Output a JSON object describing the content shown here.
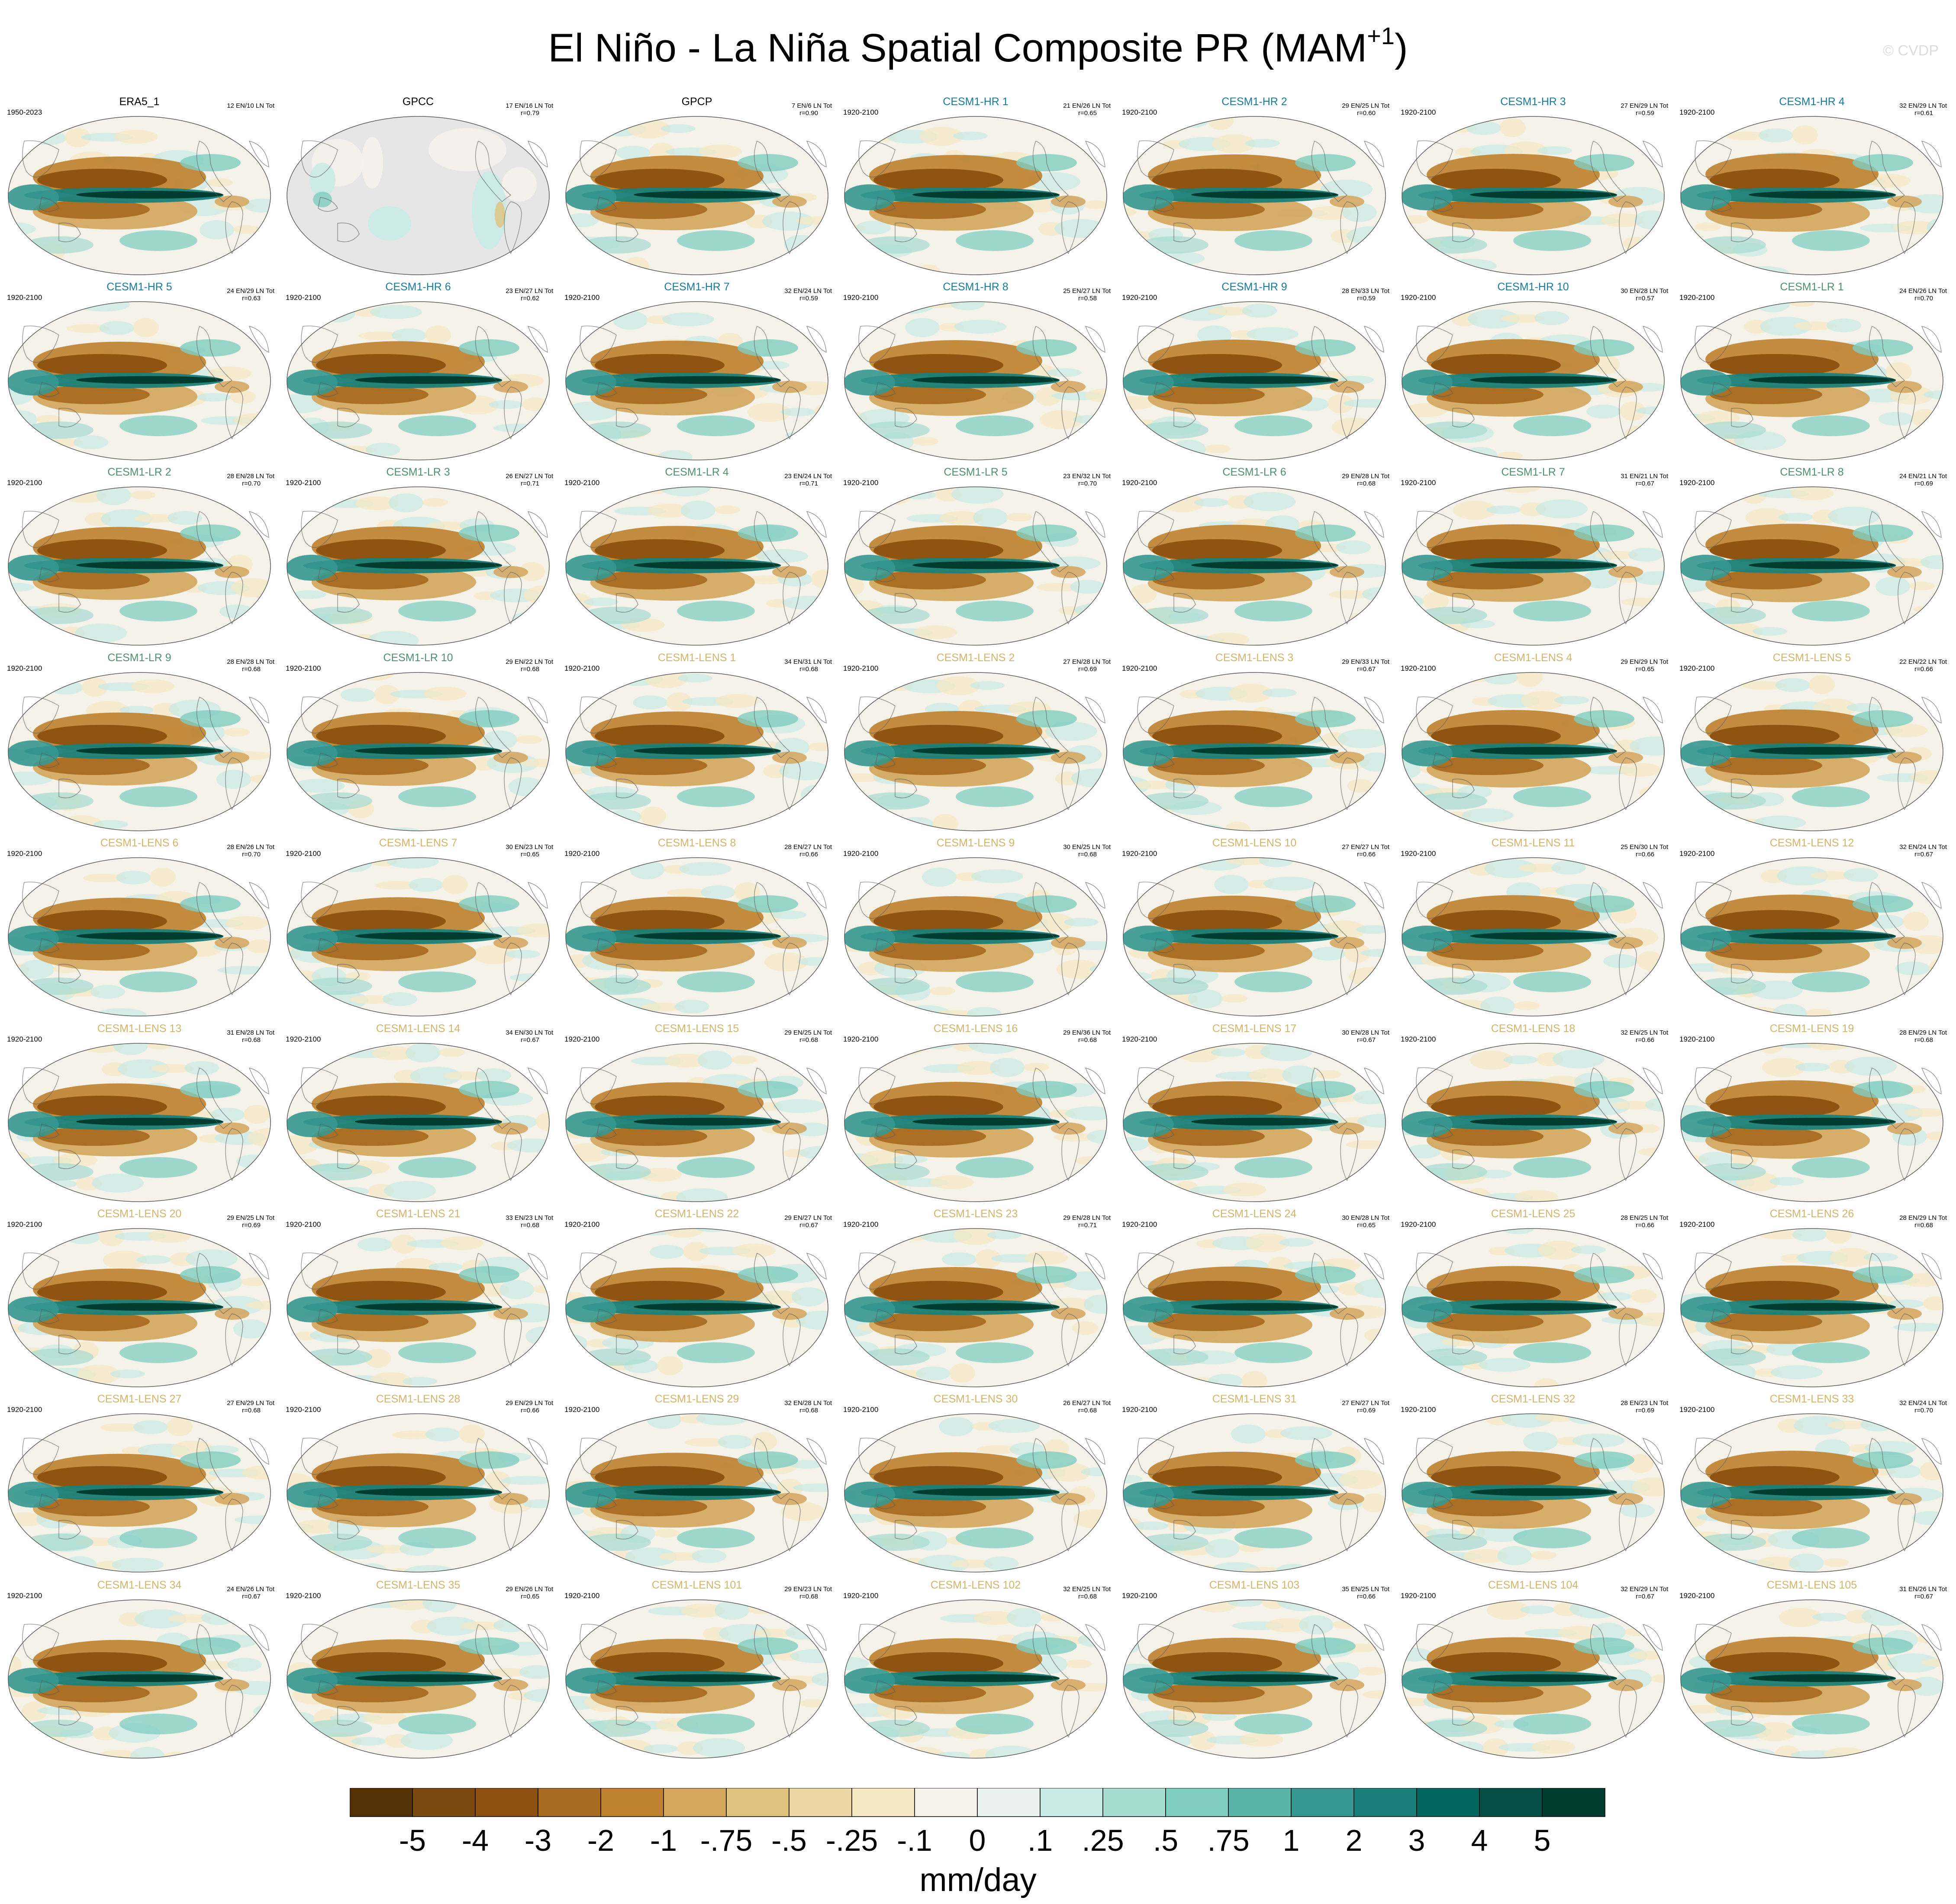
{
  "title": {
    "main": "El Niño - La Niña Spatial Composite PR (MAM",
    "superscript": "+1",
    "close": ")"
  },
  "watermark": "© CVDP",
  "colors": {
    "obs_title": "#000000",
    "hr_title": "#1a7a9c",
    "lr_title": "#4f8f6f",
    "lens_title": "#d2b46e",
    "land_gray": "#e6e6e6"
  },
  "panels": [
    {
      "name": "ERA5_1",
      "group": "obs",
      "years": "1950-2023",
      "counts": "12 EN/10 LN Tot",
      "r": ""
    },
    {
      "name": "GPCC",
      "group": "obs",
      "years": "",
      "counts": "17 EN/16 LN Tot",
      "r": "r=0.79",
      "style": "gpcc"
    },
    {
      "name": "GPCP",
      "group": "obs",
      "years": "",
      "counts": "7 EN/6 LN Tot",
      "r": "r=0.90"
    },
    {
      "name": "CESM1-HR 1",
      "group": "hr",
      "years": "1920-2100",
      "counts": "21 EN/26 LN Tot",
      "r": "r=0.65"
    },
    {
      "name": "CESM1-HR 2",
      "group": "hr",
      "years": "1920-2100",
      "counts": "29 EN/25 LN Tot",
      "r": "r=0.60"
    },
    {
      "name": "CESM1-HR 3",
      "group": "hr",
      "years": "1920-2100",
      "counts": "27 EN/29 LN Tot",
      "r": "r=0.59"
    },
    {
      "name": "CESM1-HR 4",
      "group": "hr",
      "years": "1920-2100",
      "counts": "32 EN/29 LN Tot",
      "r": "r=0.61"
    },
    {
      "name": "CESM1-HR 5",
      "group": "hr",
      "years": "1920-2100",
      "counts": "24 EN/29 LN Tot",
      "r": "r=0.63"
    },
    {
      "name": "CESM1-HR 6",
      "group": "hr",
      "years": "1920-2100",
      "counts": "23 EN/27 LN Tot",
      "r": "r=0.62"
    },
    {
      "name": "CESM1-HR 7",
      "group": "hr",
      "years": "1920-2100",
      "counts": "32 EN/24 LN Tot",
      "r": "r=0.59"
    },
    {
      "name": "CESM1-HR 8",
      "group": "hr",
      "years": "1920-2100",
      "counts": "25 EN/27 LN Tot",
      "r": "r=0.58"
    },
    {
      "name": "CESM1-HR 9",
      "group": "hr",
      "years": "1920-2100",
      "counts": "28 EN/33 LN Tot",
      "r": "r=0.59"
    },
    {
      "name": "CESM1-HR 10",
      "group": "hr",
      "years": "1920-2100",
      "counts": "30 EN/28 LN Tot",
      "r": "r=0.57"
    },
    {
      "name": "CESM1-LR 1",
      "group": "lr",
      "years": "1920-2100",
      "counts": "24 EN/26 LN Tot",
      "r": "r=0.70"
    },
    {
      "name": "CESM1-LR 2",
      "group": "lr",
      "years": "1920-2100",
      "counts": "28 EN/28 LN Tot",
      "r": "r=0.70"
    },
    {
      "name": "CESM1-LR 3",
      "group": "lr",
      "years": "1920-2100",
      "counts": "26 EN/27 LN Tot",
      "r": "r=0.71"
    },
    {
      "name": "CESM1-LR 4",
      "group": "lr",
      "years": "1920-2100",
      "counts": "23 EN/24 LN Tot",
      "r": "r=0.71"
    },
    {
      "name": "CESM1-LR 5",
      "group": "lr",
      "years": "1920-2100",
      "counts": "23 EN/32 LN Tot",
      "r": "r=0.70"
    },
    {
      "name": "CESM1-LR 6",
      "group": "lr",
      "years": "1920-2100",
      "counts": "29 EN/28 LN Tot",
      "r": "r=0.68"
    },
    {
      "name": "CESM1-LR 7",
      "group": "lr",
      "years": "1920-2100",
      "counts": "31 EN/21 LN Tot",
      "r": "r=0.67"
    },
    {
      "name": "CESM1-LR 8",
      "group": "lr",
      "years": "1920-2100",
      "counts": "24 EN/21 LN Tot",
      "r": "r=0.69"
    },
    {
      "name": "CESM1-LR 9",
      "group": "lr",
      "years": "1920-2100",
      "counts": "28 EN/28 LN Tot",
      "r": "r=0.68"
    },
    {
      "name": "CESM1-LR 10",
      "group": "lr",
      "years": "1920-2100",
      "counts": "29 EN/22 LN Tot",
      "r": "r=0.68"
    },
    {
      "name": "CESM1-LENS 1",
      "group": "lens",
      "years": "1920-2100",
      "counts": "34 EN/31 LN Tot",
      "r": "r=0.68"
    },
    {
      "name": "CESM1-LENS 2",
      "group": "lens",
      "years": "1920-2100",
      "counts": "27 EN/28 LN Tot",
      "r": "r=0.69"
    },
    {
      "name": "CESM1-LENS 3",
      "group": "lens",
      "years": "1920-2100",
      "counts": "29 EN/33 LN Tot",
      "r": "r=0.67"
    },
    {
      "name": "CESM1-LENS 4",
      "group": "lens",
      "years": "1920-2100",
      "counts": "29 EN/29 LN Tot",
      "r": "r=0.65"
    },
    {
      "name": "CESM1-LENS 5",
      "group": "lens",
      "years": "1920-2100",
      "counts": "22 EN/22 LN Tot",
      "r": "r=0.66"
    },
    {
      "name": "CESM1-LENS 6",
      "group": "lens",
      "years": "1920-2100",
      "counts": "28 EN/26 LN Tot",
      "r": "r=0.70"
    },
    {
      "name": "CESM1-LENS 7",
      "group": "lens",
      "years": "1920-2100",
      "counts": "30 EN/23 LN Tot",
      "r": "r=0.65"
    },
    {
      "name": "CESM1-LENS 8",
      "group": "lens",
      "years": "1920-2100",
      "counts": "28 EN/27 LN Tot",
      "r": "r=0.66"
    },
    {
      "name": "CESM1-LENS 9",
      "group": "lens",
      "years": "1920-2100",
      "counts": "30 EN/25 LN Tot",
      "r": "r=0.68"
    },
    {
      "name": "CESM1-LENS 10",
      "group": "lens",
      "years": "1920-2100",
      "counts": "27 EN/27 LN Tot",
      "r": "r=0.66"
    },
    {
      "name": "CESM1-LENS 11",
      "group": "lens",
      "years": "1920-2100",
      "counts": "25 EN/30 LN Tot",
      "r": "r=0.66"
    },
    {
      "name": "CESM1-LENS 12",
      "group": "lens",
      "years": "1920-2100",
      "counts": "32 EN/24 LN Tot",
      "r": "r=0.67"
    },
    {
      "name": "CESM1-LENS 13",
      "group": "lens",
      "years": "1920-2100",
      "counts": "31 EN/28 LN Tot",
      "r": "r=0.68"
    },
    {
      "name": "CESM1-LENS 14",
      "group": "lens",
      "years": "1920-2100",
      "counts": "34 EN/30 LN Tot",
      "r": "r=0.67"
    },
    {
      "name": "CESM1-LENS 15",
      "group": "lens",
      "years": "1920-2100",
      "counts": "29 EN/25 LN Tot",
      "r": "r=0.68"
    },
    {
      "name": "CESM1-LENS 16",
      "group": "lens",
      "years": "1920-2100",
      "counts": "29 EN/36 LN Tot",
      "r": "r=0.68"
    },
    {
      "name": "CESM1-LENS 17",
      "group": "lens",
      "years": "1920-2100",
      "counts": "30 EN/28 LN Tot",
      "r": "r=0.67"
    },
    {
      "name": "CESM1-LENS 18",
      "group": "lens",
      "years": "1920-2100",
      "counts": "32 EN/25 LN Tot",
      "r": "r=0.66"
    },
    {
      "name": "CESM1-LENS 19",
      "group": "lens",
      "years": "1920-2100",
      "counts": "28 EN/29 LN Tot",
      "r": "r=0.68"
    },
    {
      "name": "CESM1-LENS 20",
      "group": "lens",
      "years": "1920-2100",
      "counts": "29 EN/25 LN Tot",
      "r": "r=0.69"
    },
    {
      "name": "CESM1-LENS 21",
      "group": "lens",
      "years": "1920-2100",
      "counts": "33 EN/23 LN Tot",
      "r": "r=0.68"
    },
    {
      "name": "CESM1-LENS 22",
      "group": "lens",
      "years": "1920-2100",
      "counts": "29 EN/27 LN Tot",
      "r": "r=0.67"
    },
    {
      "name": "CESM1-LENS 23",
      "group": "lens",
      "years": "1920-2100",
      "counts": "29 EN/28 LN Tot",
      "r": "r=0.71"
    },
    {
      "name": "CESM1-LENS 24",
      "group": "lens",
      "years": "1920-2100",
      "counts": "30 EN/28 LN Tot",
      "r": "r=0.65"
    },
    {
      "name": "CESM1-LENS 25",
      "group": "lens",
      "years": "1920-2100",
      "counts": "28 EN/25 LN Tot",
      "r": "r=0.66"
    },
    {
      "name": "CESM1-LENS 26",
      "group": "lens",
      "years": "1920-2100",
      "counts": "28 EN/29 LN Tot",
      "r": "r=0.68"
    },
    {
      "name": "CESM1-LENS 27",
      "group": "lens",
      "years": "1920-2100",
      "counts": "27 EN/29 LN Tot",
      "r": "r=0.68"
    },
    {
      "name": "CESM1-LENS 28",
      "group": "lens",
      "years": "1920-2100",
      "counts": "29 EN/29 LN Tot",
      "r": "r=0.66"
    },
    {
      "name": "CESM1-LENS 29",
      "group": "lens",
      "years": "1920-2100",
      "counts": "32 EN/28 LN Tot",
      "r": "r=0.68"
    },
    {
      "name": "CESM1-LENS 30",
      "group": "lens",
      "years": "1920-2100",
      "counts": "26 EN/27 LN Tot",
      "r": "r=0.68"
    },
    {
      "name": "CESM1-LENS 31",
      "group": "lens",
      "years": "1920-2100",
      "counts": "27 EN/27 LN Tot",
      "r": "r=0.69"
    },
    {
      "name": "CESM1-LENS 32",
      "group": "lens",
      "years": "1920-2100",
      "counts": "28 EN/23 LN Tot",
      "r": "r=0.69"
    },
    {
      "name": "CESM1-LENS 33",
      "group": "lens",
      "years": "1920-2100",
      "counts": "32 EN/24 LN Tot",
      "r": "r=0.70"
    },
    {
      "name": "CESM1-LENS 34",
      "group": "lens",
      "years": "1920-2100",
      "counts": "24 EN/26 LN Tot",
      "r": "r=0.67"
    },
    {
      "name": "CESM1-LENS 35",
      "group": "lens",
      "years": "1920-2100",
      "counts": "29 EN/26 LN Tot",
      "r": "r=0.65"
    },
    {
      "name": "CESM1-LENS 101",
      "group": "lens",
      "years": "1920-2100",
      "counts": "29 EN/23 LN Tot",
      "r": "r=0.68"
    },
    {
      "name": "CESM1-LENS 102",
      "group": "lens",
      "years": "1920-2100",
      "counts": "32 EN/25 LN Tot",
      "r": "r=0.68"
    },
    {
      "name": "CESM1-LENS 103",
      "group": "lens",
      "years": "1920-2100",
      "counts": "35 EN/25 LN Tot",
      "r": "r=0.66"
    },
    {
      "name": "CESM1-LENS 104",
      "group": "lens",
      "years": "1920-2100",
      "counts": "32 EN/29 LN Tot",
      "r": "r=0.67"
    },
    {
      "name": "CESM1-LENS 105",
      "group": "lens",
      "years": "1920-2100",
      "counts": "31 EN/26 LN Tot",
      "r": "r=0.67"
    }
  ],
  "chart_data": {
    "type": "heatmap",
    "title": "El Niño - La Niña Spatial Composite PR (MAM+1)",
    "projection": "Robinson, Pacific-centered",
    "units": "mm/day",
    "colorbar": {
      "labels": [
        "-5",
        "-4",
        "-3",
        "-2",
        "-1",
        "-.75",
        "-.5",
        "-.25",
        "-.1",
        "0",
        ".1",
        ".25",
        ".5",
        ".75",
        "1",
        "2",
        "3",
        "4",
        "5"
      ],
      "levels": [
        -5,
        -4,
        -3,
        -2,
        -1,
        -0.75,
        -0.5,
        -0.25,
        -0.1,
        0,
        0.1,
        0.25,
        0.5,
        0.75,
        1,
        2,
        3,
        4,
        5
      ],
      "colors": [
        "#543005",
        "#7a4a0e",
        "#8c5110",
        "#a86b22",
        "#bf812d",
        "#d4a55c",
        "#dfc27d",
        "#ecd6a4",
        "#f6e8c3",
        "#f5f2ea",
        "#e9f2ef",
        "#c7eae5",
        "#a6dcd2",
        "#80cdc1",
        "#5ab4a8",
        "#35978f",
        "#1a7f78",
        "#01665e",
        "#064f46",
        "#003c30"
      ]
    }
  }
}
